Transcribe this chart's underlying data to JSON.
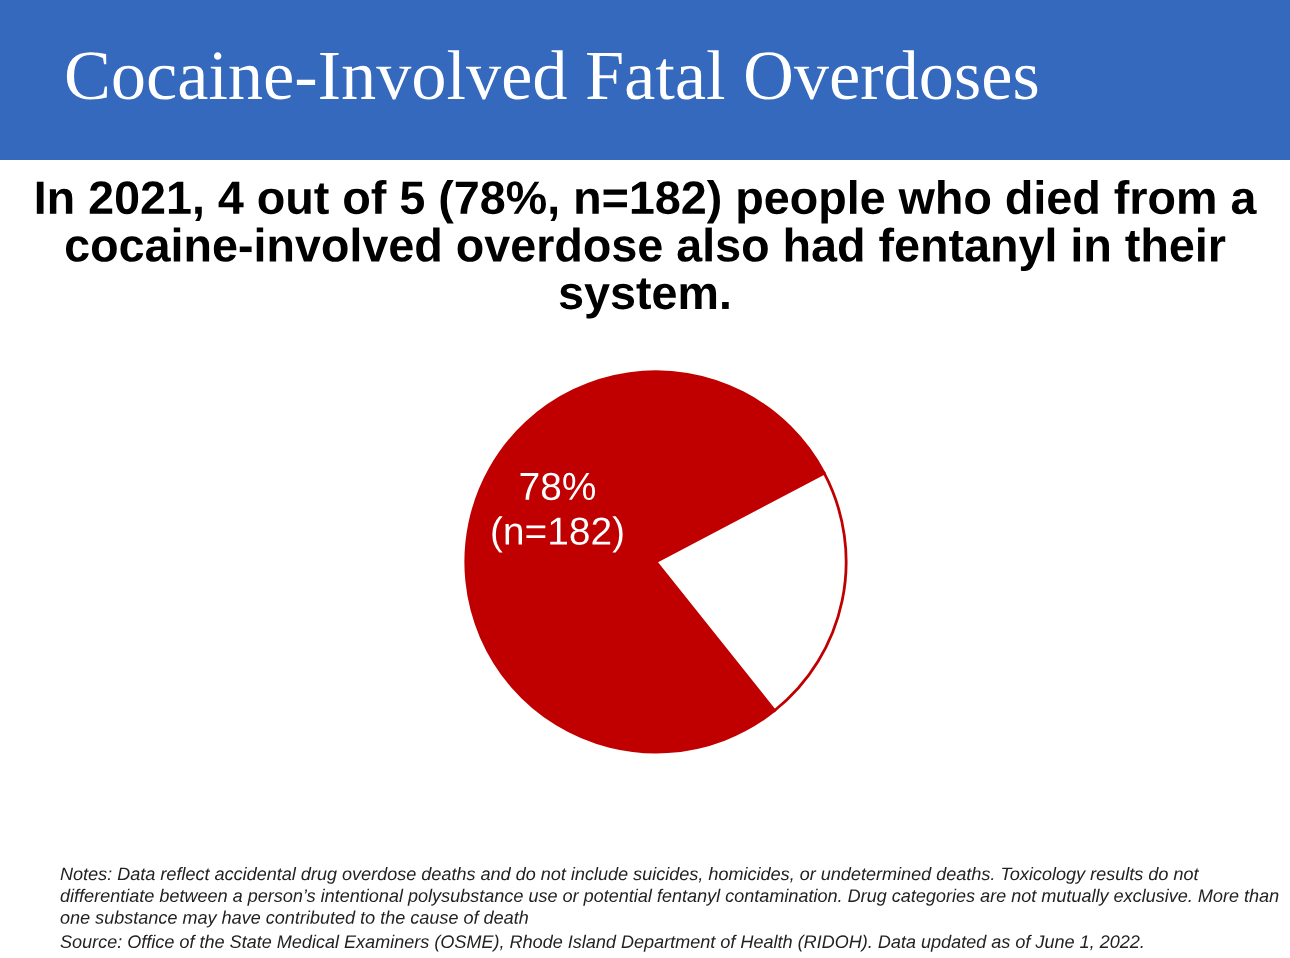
{
  "chart_data": {
    "type": "pie",
    "title": "Cocaine-Involved Fatal Overdoses",
    "subtitle": "In 2021, 4 out of 5 (78%, n=182) people who died from a cocaine-involved overdose also had fentanyl in their system.",
    "categories": [
      null,
      null
    ],
    "values": [
      78,
      22
    ],
    "colors": [
      "#c00000",
      "#ffffff"
    ],
    "value_labels": [
      "78%\n(n=182)",
      null
    ],
    "annotations": [
      "Notes: Data reflect accidental drug overdose deaths and do not include suicides, homicides, or undetermined deaths. Toxicology results do not differentiate between a person’s intentional polysubstance use or potential fentanyl contamination. Drug categories are not mutually exclusive. More than one substance may have contributed to the cause of death",
      "Source: Office of the State Medical Examiners (OSME), Rhode Island Department of Health (RIDOH). Data updated as of June 1, 2022."
    ]
  }
}
